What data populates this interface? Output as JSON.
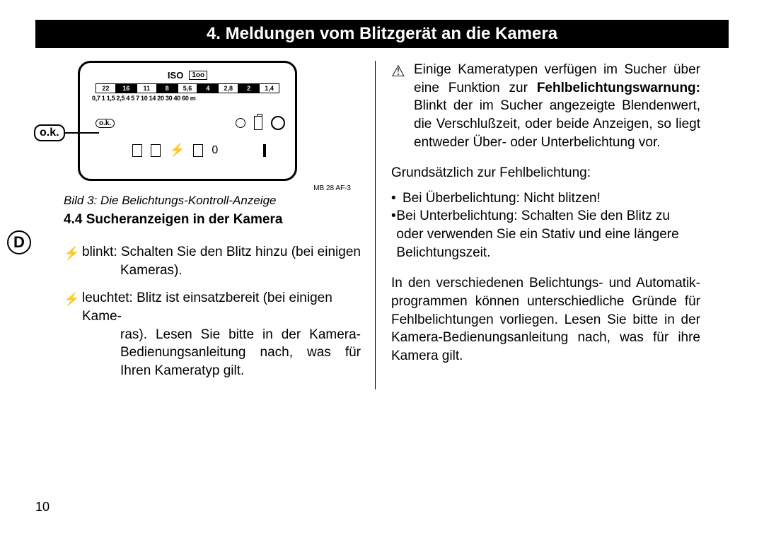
{
  "title": "4. Meldungen vom Blitzgerät an die Kamera",
  "diagram": {
    "ok_outer": "o.k.",
    "iso_label": "ISO",
    "iso_value": "1oo",
    "apertures": [
      "22",
      "16",
      "11",
      "8",
      "5,6",
      "4",
      "2,8",
      "2",
      "1,4"
    ],
    "aperture_inverted": [
      false,
      true,
      false,
      true,
      false,
      true,
      false,
      true,
      false
    ],
    "distances": "0,7 1 1,5 2,5 4 5 7 10 14 20 30 40 60 m",
    "ok_inner": "o.k.",
    "zero": "0",
    "model_label": "MB 28 AF-3"
  },
  "caption": "Bild 3: Die Belichtungs-Kontroll-Anzeige",
  "d_badge": "D",
  "subheading": "4.4 Sucheranzeigen in der Kamera",
  "left_items": [
    {
      "lead": "blinkt: Schalten Sie den Blitz hinzu (bei einigen",
      "rest": "Kameras)."
    },
    {
      "lead": "leuchtet: Blitz ist einsatzbereit (bei einigen Kame-",
      "rest": "ras). Lesen Sie bitte in der Kamera-Bedienungsanleitung nach, was für Ihren Kameratyp gilt."
    }
  ],
  "right": {
    "warning": "Einige Kameratypen verfügen im Sucher über eine Funktion zur ",
    "warning_bold": "Fehlbelichtungswarnung:",
    "warning_tail": " Blinkt der im Sucher angezeigte Blendenwert, die Verschlußzeit, oder beide Anzeigen, so liegt entweder Über- oder Unterbelichtung vor.",
    "intro": "Grundsätzlich zur Fehlbelichtung:",
    "bullet1": "Bei Überbelichtung: Nicht blitzen!",
    "bullet2": "Bei Unterbelichtung: Schalten Sie den Blitz zu oder verwenden Sie ein Stativ und eine längere Belichtungszeit.",
    "para2": "In den verschiedenen Belichtungs- und Automatik-programmen können unterschiedliche Gründe für Fehlbelichtungen vorliegen. Lesen Sie bitte in der Kamera-Bedienungsanleitung nach, was für ihre Kamera gilt."
  },
  "page_number": "10"
}
